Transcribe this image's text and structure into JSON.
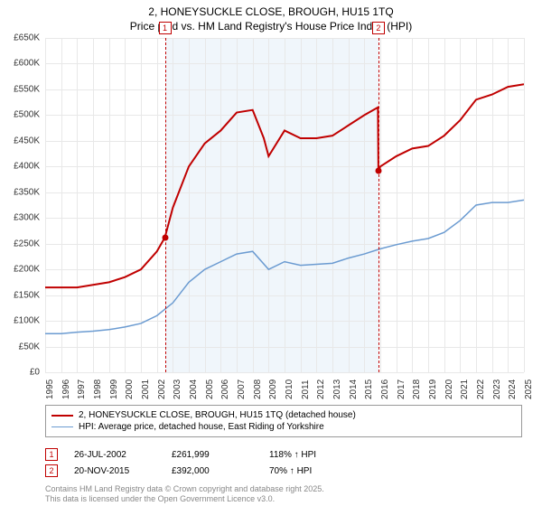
{
  "title_line1": "2, HONEYSUCKLE CLOSE, BROUGH, HU15 1TQ",
  "title_line2": "Price paid vs. HM Land Registry's House Price Index (HPI)",
  "chart": {
    "background_color": "#ffffff",
    "grid_color": "#e8e8e8",
    "shaded_color": "#eaf2fa",
    "x_years": [
      1995,
      1996,
      1997,
      1998,
      1999,
      2000,
      2001,
      2002,
      2003,
      2004,
      2005,
      2006,
      2007,
      2008,
      2009,
      2010,
      2011,
      2012,
      2013,
      2014,
      2015,
      2016,
      2017,
      2018,
      2019,
      2020,
      2021,
      2022,
      2023,
      2024,
      2025
    ],
    "y_ticks": [
      0,
      50000,
      100000,
      150000,
      200000,
      250000,
      300000,
      350000,
      400000,
      450000,
      500000,
      550000,
      600000,
      650000
    ],
    "y_max": 650000,
    "series": [
      {
        "name": "property",
        "label": "2, HONEYSUCKLE CLOSE, BROUGH, HU15 1TQ (detached house)",
        "color": "#c00000",
        "width": 2,
        "points": [
          [
            1995,
            165000
          ],
          [
            1996,
            165000
          ],
          [
            1997,
            165000
          ],
          [
            1998,
            170000
          ],
          [
            1999,
            175000
          ],
          [
            2000,
            185000
          ],
          [
            2001,
            200000
          ],
          [
            2002,
            235000
          ],
          [
            2002.5,
            261999
          ],
          [
            2003,
            320000
          ],
          [
            2004,
            400000
          ],
          [
            2005,
            445000
          ],
          [
            2006,
            470000
          ],
          [
            2007,
            505000
          ],
          [
            2008,
            510000
          ],
          [
            2008.7,
            455000
          ],
          [
            2009,
            420000
          ],
          [
            2010,
            470000
          ],
          [
            2011,
            455000
          ],
          [
            2012,
            455000
          ],
          [
            2013,
            460000
          ],
          [
            2014,
            480000
          ],
          [
            2015,
            500000
          ],
          [
            2015.85,
            515000
          ],
          [
            2015.88,
            392000
          ],
          [
            2016,
            400000
          ],
          [
            2017,
            420000
          ],
          [
            2018,
            435000
          ],
          [
            2019,
            440000
          ],
          [
            2020,
            460000
          ],
          [
            2021,
            490000
          ],
          [
            2022,
            530000
          ],
          [
            2023,
            540000
          ],
          [
            2024,
            555000
          ],
          [
            2025,
            560000
          ]
        ]
      },
      {
        "name": "hpi",
        "label": "HPI: Average price, detached house, East Riding of Yorkshire",
        "color": "#6b9bd1",
        "width": 1.5,
        "points": [
          [
            1995,
            75000
          ],
          [
            1996,
            75000
          ],
          [
            1997,
            78000
          ],
          [
            1998,
            80000
          ],
          [
            1999,
            83000
          ],
          [
            2000,
            88000
          ],
          [
            2001,
            95000
          ],
          [
            2002,
            110000
          ],
          [
            2003,
            135000
          ],
          [
            2004,
            175000
          ],
          [
            2005,
            200000
          ],
          [
            2006,
            215000
          ],
          [
            2007,
            230000
          ],
          [
            2008,
            235000
          ],
          [
            2009,
            200000
          ],
          [
            2010,
            215000
          ],
          [
            2011,
            208000
          ],
          [
            2012,
            210000
          ],
          [
            2013,
            212000
          ],
          [
            2014,
            222000
          ],
          [
            2015,
            230000
          ],
          [
            2016,
            240000
          ],
          [
            2017,
            248000
          ],
          [
            2018,
            255000
          ],
          [
            2019,
            260000
          ],
          [
            2020,
            272000
          ],
          [
            2021,
            295000
          ],
          [
            2022,
            325000
          ],
          [
            2023,
            330000
          ],
          [
            2024,
            330000
          ],
          [
            2025,
            335000
          ]
        ]
      }
    ],
    "markers": [
      {
        "num": "1",
        "x": 2002.5,
        "y": 261999
      },
      {
        "num": "2",
        "x": 2015.88,
        "y": 392000
      }
    ],
    "shaded_range": [
      2002.5,
      2015.88
    ]
  },
  "sales": [
    {
      "num": "1",
      "date": "26-JUL-2002",
      "price": "£261,999",
      "delta": "118% ↑ HPI"
    },
    {
      "num": "2",
      "date": "20-NOV-2015",
      "price": "£392,000",
      "delta": "70% ↑ HPI"
    }
  ],
  "footer_line1": "Contains HM Land Registry data © Crown copyright and database right 2025.",
  "footer_line2": "This data is licensed under the Open Government Licence v3.0."
}
